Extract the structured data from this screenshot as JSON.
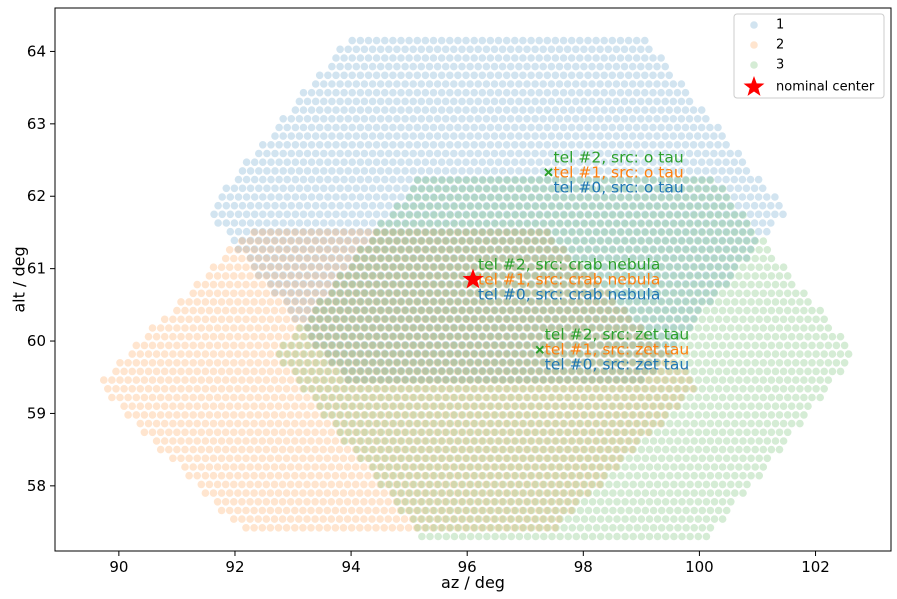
{
  "chart_data": {
    "type": "scatter",
    "xlabel": "az / deg",
    "ylabel": "alt / deg",
    "xlim": [
      88.9,
      103.3
    ],
    "ylim": [
      57.1,
      64.6
    ],
    "xticks": [
      90,
      92,
      94,
      96,
      98,
      100,
      102
    ],
    "yticks": [
      58,
      59,
      60,
      61,
      62,
      63,
      64
    ],
    "grid": false,
    "legend_position": "top-right",
    "colors": {
      "1": "#1f77b4",
      "2": "#ff7f0e",
      "3": "#2ca02c",
      "center": "#ff0000"
    },
    "series": [
      {
        "name": "1",
        "color": "#1f77b4",
        "marker": "circle",
        "alpha": 0.2,
        "center": [
          96.5,
          61.8
        ],
        "radius": [
          5.0,
          2.45
        ],
        "spacing": [
          0.14,
          0.12
        ]
      },
      {
        "name": "2",
        "color": "#ff7f0e",
        "marker": "circle",
        "alpha": 0.2,
        "center": [
          94.8,
          59.4
        ],
        "radius": [
          5.2,
          2.1
        ],
        "spacing": [
          0.14,
          0.12
        ]
      },
      {
        "name": "3",
        "color": "#2ca02c",
        "marker": "circle",
        "alpha": 0.2,
        "center": [
          97.7,
          59.8
        ],
        "radius": [
          5.0,
          2.5
        ],
        "spacing": [
          0.14,
          0.12
        ]
      }
    ],
    "nominal_center": {
      "label": "nominal center",
      "x": 96.1,
      "y": 60.85,
      "color": "#ff0000"
    },
    "annotations": [
      {
        "x": 97.4,
        "y": 62.33,
        "marker_color": "#2ca02c",
        "labels": [
          {
            "text": "tel #2, src: o tau",
            "color": "#2ca02c"
          },
          {
            "text": "tel #1, src: o tau",
            "color": "#ff7f0e"
          },
          {
            "text": "tel #0, src: o tau",
            "color": "#1f77b4"
          }
        ]
      },
      {
        "x": 96.1,
        "y": 60.85,
        "marker_color": "#2ca02c",
        "labels": [
          {
            "text": "tel #2, src: crab nebula",
            "color": "#2ca02c"
          },
          {
            "text": "tel #1, src: crab nebula",
            "color": "#ff7f0e"
          },
          {
            "text": "tel #0, src: crab nebula",
            "color": "#1f77b4"
          }
        ]
      },
      {
        "x": 97.25,
        "y": 59.88,
        "marker_color": "#2ca02c",
        "labels": [
          {
            "text": "tel #2, src: zet tau",
            "color": "#2ca02c"
          },
          {
            "text": "tel #1, src: zet tau",
            "color": "#ff7f0e"
          },
          {
            "text": "tel #0, src: zet tau",
            "color": "#1f77b4"
          }
        ]
      }
    ]
  }
}
